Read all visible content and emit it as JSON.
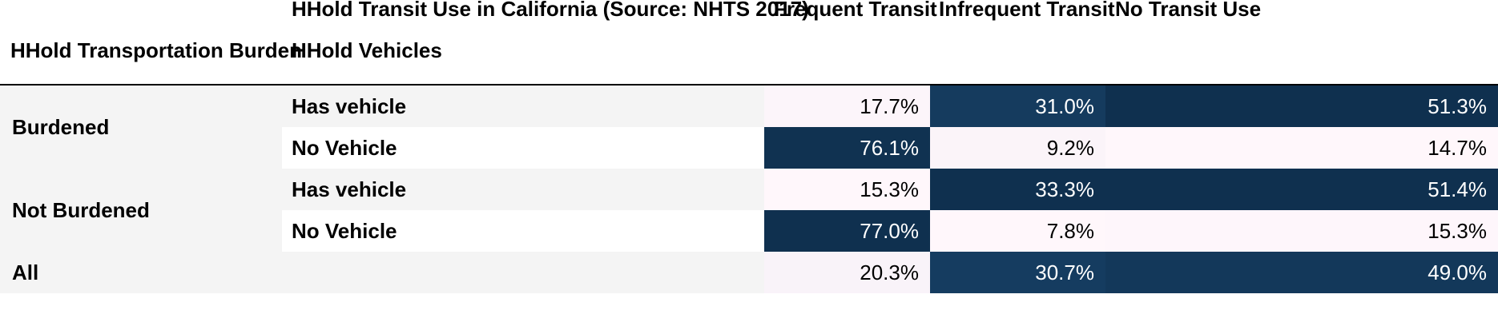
{
  "table_title": "HHold Transit Use in California (Source: NHTS 2017)",
  "columns": [
    "Frequent Transit",
    "Infrequent Transit",
    "No Transit Use"
  ],
  "index_headers": {
    "level0": "HHold Transportation Burden",
    "level1": "HHold Vehicles"
  },
  "groups": [
    {
      "label": "Burdened",
      "rows": [
        {
          "label": "Has vehicle",
          "values": [
            "17.7%",
            "31.0%",
            "51.3%"
          ]
        },
        {
          "label": "No Vehicle",
          "values": [
            "76.1%",
            "9.2%",
            "14.7%"
          ]
        }
      ]
    },
    {
      "label": "Not Burdened",
      "rows": [
        {
          "label": "Has vehicle",
          "values": [
            "15.3%",
            "33.3%",
            "51.4%"
          ]
        },
        {
          "label": "No Vehicle",
          "values": [
            "77.0%",
            "7.8%",
            "15.3%"
          ]
        }
      ]
    },
    {
      "label": "All",
      "rows": [
        {
          "label": "",
          "values": [
            "20.3%",
            "30.7%",
            "49.0%"
          ]
        }
      ]
    }
  ],
  "colors": {
    "row_band": "#f4f4f4",
    "heat_low": "#fff7fb",
    "heat_high": "#0f304f",
    "text_dark": "#000000",
    "text_light": "#ffffff"
  },
  "chart_data": {
    "type": "heatmap",
    "title": "HHold Transit Use in California (Source: NHTS 2017)",
    "columns": [
      "Frequent Transit",
      "Infrequent Transit",
      "No Transit Use"
    ],
    "rows": [
      {
        "burden": "Burdened",
        "vehicles": "Has vehicle",
        "values": [
          17.7,
          31.0,
          51.3
        ]
      },
      {
        "burden": "Burdened",
        "vehicles": "No Vehicle",
        "values": [
          76.1,
          9.2,
          14.7
        ]
      },
      {
        "burden": "Not Burdened",
        "vehicles": "Has vehicle",
        "values": [
          15.3,
          33.3,
          51.4
        ]
      },
      {
        "burden": "Not Burdened",
        "vehicles": "No Vehicle",
        "values": [
          77.0,
          7.8,
          15.3
        ]
      },
      {
        "burden": "All",
        "vehicles": "",
        "values": [
          20.3,
          30.7,
          49.0
        ]
      }
    ],
    "unit": "%",
    "color_scale": "PuBu"
  }
}
